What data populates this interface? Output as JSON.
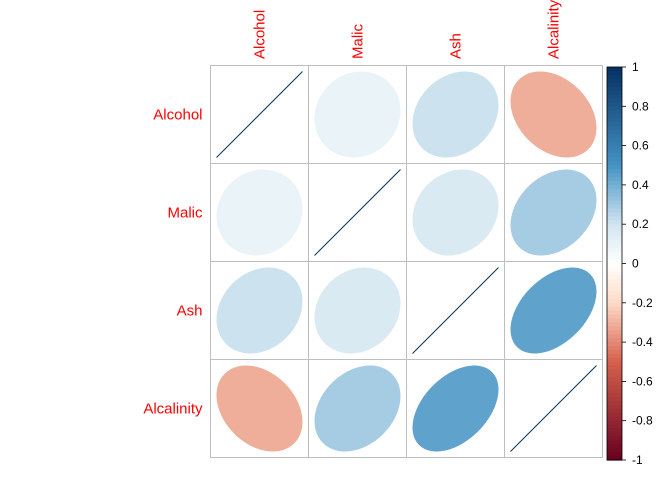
{
  "chart_data": {
    "type": "heatmap",
    "style": "ellipse correlation matrix",
    "row_labels": [
      "Alcohol",
      "Malic",
      "Ash",
      "Alcalinity"
    ],
    "col_labels": [
      "Alcohol",
      "Malic",
      "Ash",
      "Alcalinity"
    ],
    "matrix": [
      [
        1.0,
        0.09,
        0.21,
        -0.31
      ],
      [
        0.09,
        1.0,
        0.16,
        0.29
      ],
      [
        0.21,
        0.16,
        1.0,
        0.44
      ],
      [
        -0.31,
        0.29,
        0.44,
        1.0
      ]
    ],
    "colorbar": {
      "range": [
        -1,
        1
      ],
      "ticks": [
        1,
        0.8,
        0.6,
        0.4,
        0.2,
        0,
        -0.2,
        -0.4,
        -0.6,
        -0.8,
        -1
      ],
      "tick_labels": [
        "1",
        "0.8",
        "0.6",
        "0.4",
        "0.2",
        "0",
        "-0.2",
        "-0.4",
        "-0.6",
        "-0.8",
        "-1"
      ]
    },
    "label_color": "#ff0000",
    "colors": {
      "neg_strong": "#67001F",
      "neg_mid": "#D6604D",
      "neg_light": "#FDDBC7",
      "neutral": "#FFFFFF",
      "pos_light": "#D1E5F0",
      "pos_mid": "#4393C3",
      "pos_strong": "#053061"
    }
  }
}
